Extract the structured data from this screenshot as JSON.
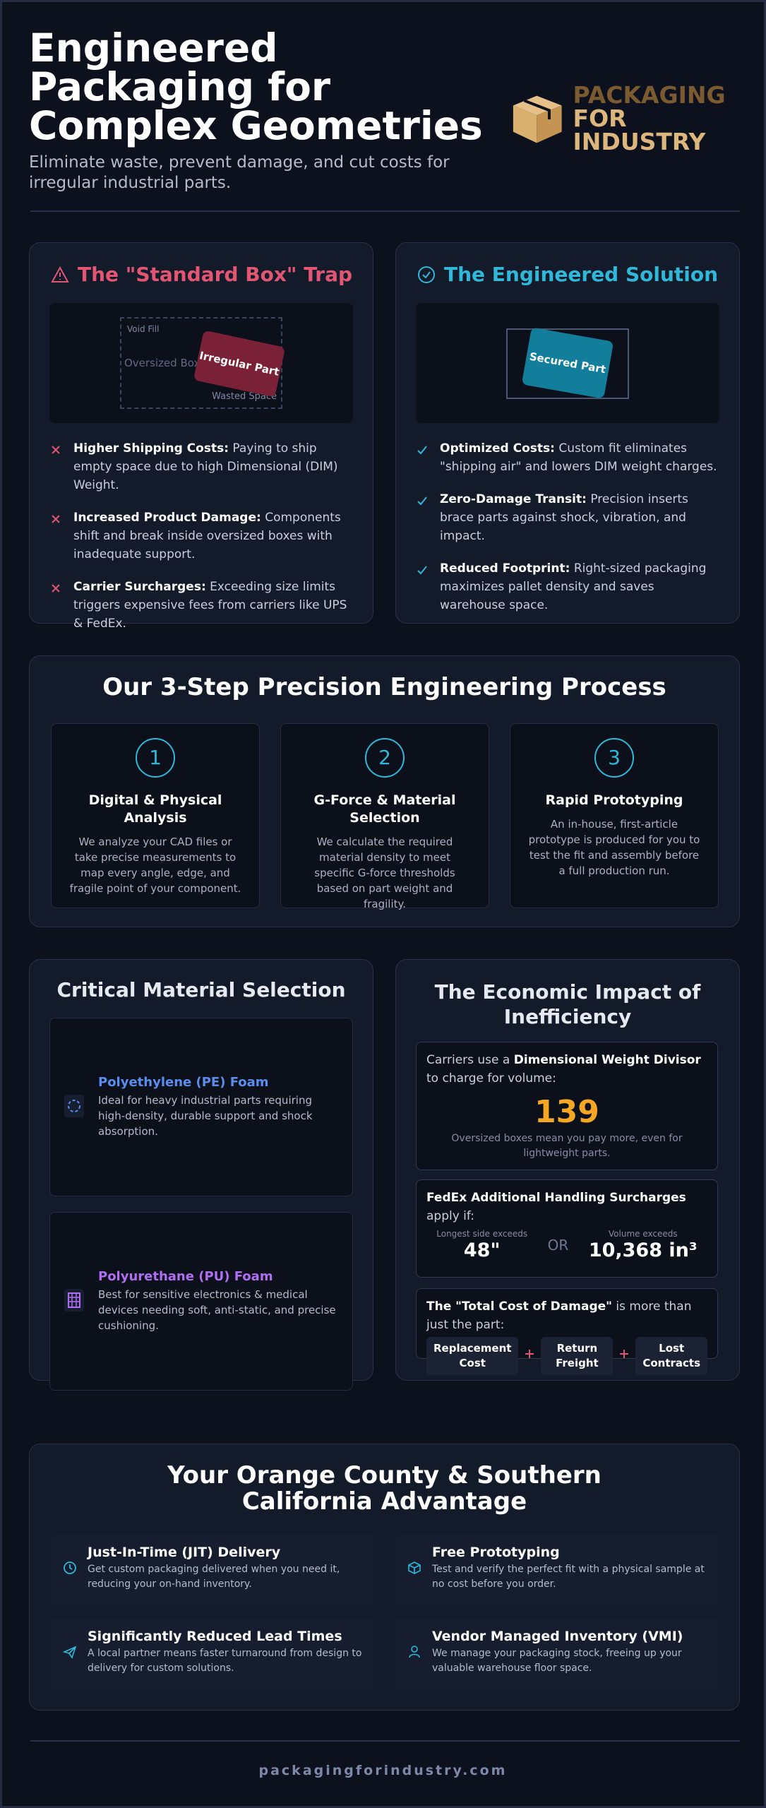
{
  "header": {
    "title": "Engineered Packaging for Complex Geometries",
    "subtitle": "Eliminate waste, prevent damage, and cut costs for irregular industrial parts.",
    "logo": {
      "line1": "PACKAGING",
      "line2": "FOR INDUSTRY"
    }
  },
  "problem": {
    "title": "The \"Standard Box\" Trap",
    "illustration": {
      "void_fill": "Void Fill",
      "box": "Oversized Box",
      "part": "Irregular Part",
      "wasted": "Wasted Space"
    },
    "items": [
      {
        "label": "Higher Shipping Costs:",
        "text": "Paying to ship empty space due to high Dimensional (DIM) Weight."
      },
      {
        "label": "Increased Product Damage:",
        "text": "Components shift and break inside oversized boxes with inadequate support."
      },
      {
        "label": "Carrier Surcharges:",
        "text": "Exceeding size limits triggers expensive fees from carriers like UPS & FedEx."
      }
    ]
  },
  "solution": {
    "title": "The Engineered Solution",
    "illustration": {
      "part": "Secured Part"
    },
    "items": [
      {
        "label": "Optimized Costs:",
        "text": "Custom fit eliminates \"shipping air\" and lowers DIM weight charges."
      },
      {
        "label": "Zero-Damage Transit:",
        "text": "Precision inserts brace parts against shock, vibration, and impact."
      },
      {
        "label": "Reduced Footprint:",
        "text": "Right-sized packaging maximizes pallet density and saves warehouse space."
      }
    ]
  },
  "process": {
    "title": "Our 3-Step Precision Engineering Process",
    "steps": [
      {
        "number": 1,
        "title": "Digital & Physical Analysis",
        "text": "We analyze your CAD files or take precise measurements to map every angle, edge, and fragile point of your component."
      },
      {
        "number": 2,
        "title": "G-Force & Material Selection",
        "text": "We calculate the required material density to meet specific G-force thresholds based on part weight and fragility."
      },
      {
        "number": 3,
        "title": "Rapid Prototyping",
        "text": "An in-house, first-article prototype is produced for you to test the fit and assembly before a full production run."
      }
    ]
  },
  "materials": {
    "title": "Critical Material Selection",
    "items": [
      {
        "name": "Polyethylene (PE) Foam",
        "text": "Ideal for heavy industrial parts requiring high-density, durable support and shock absorption."
      },
      {
        "name": "Polyurethane (PU) Foam",
        "text": "Best for sensitive electronics & medical devices needing soft, anti-static, and precise cushioning."
      }
    ]
  },
  "economics": {
    "title": "The Economic Impact of Inefficiency",
    "dim": {
      "before": "Carriers use a",
      "bold": "Dimensional Weight Divisor",
      "after": "to charge for volume:",
      "value": 139,
      "note": "Oversized boxes mean you pay more, even for lightweight parts."
    },
    "fedex": {
      "bold": "FedEx Additional Handling Surcharges",
      "after": "apply if:",
      "side_label": "Longest side exceeds",
      "side_value": "48\"",
      "or": "OR",
      "volume_label": "Volume exceeds",
      "volume_value": "10,368 in³"
    },
    "damage": {
      "bold": "The \"Total Cost of Damage\"",
      "after": "is more than just the part:",
      "costs": [
        "Replacement Cost",
        "Return Freight",
        "Lost Contracts"
      ]
    }
  },
  "advantage": {
    "title": "Your Orange County & Southern California Advantage",
    "items": [
      {
        "title": "Just-In-Time (JIT) Delivery",
        "text": "Get custom packaging delivered when you need it, reducing your on-hand inventory."
      },
      {
        "title": "Free Prototyping",
        "text": "Test and verify the perfect fit with a physical sample at no cost before you order."
      },
      {
        "title": "Significantly Reduced Lead Times",
        "text": "A local partner means faster turnaround from design to delivery for custom solutions."
      },
      {
        "title": "Vendor Managed Inventory (VMI)",
        "text": "We manage your packaging stock, freeing up your valuable warehouse floor space."
      }
    ]
  },
  "footer": "packagingforindustry.com"
}
